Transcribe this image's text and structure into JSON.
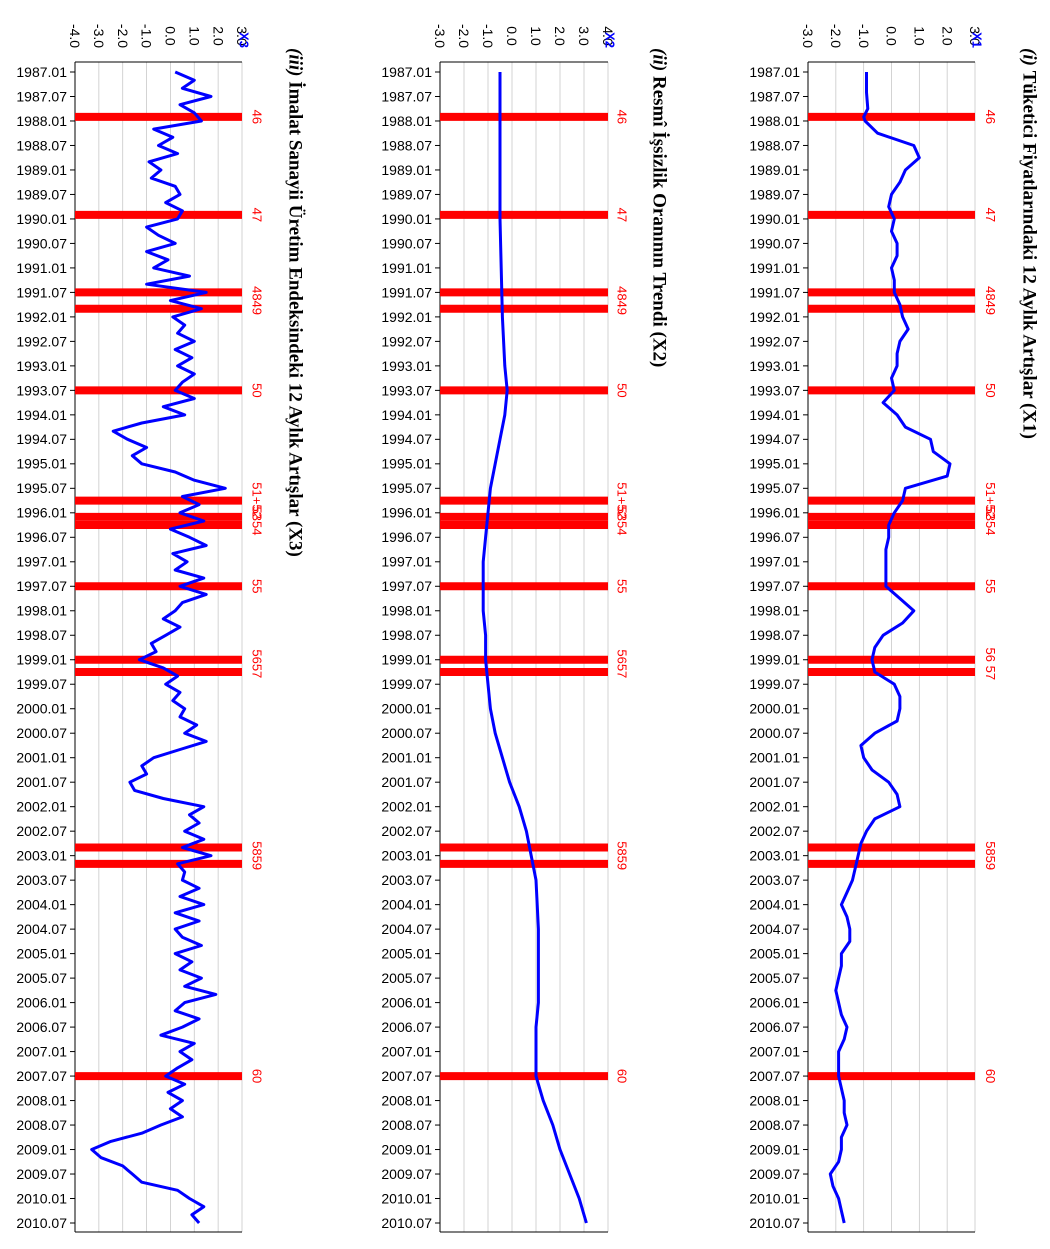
{
  "chart_data": [
    {
      "type": "line",
      "title_prefix": "(i)",
      "title": "Tüketici Fiyatlarındaki 12 Aylık Artışlar (X1)",
      "series_name": "X1",
      "ylim": [
        -3.0,
        3.0
      ],
      "yticks": [
        "3.0",
        "2.0",
        "1.0",
        "0.0",
        "-1.0",
        "-2.0",
        "-3.0"
      ],
      "color_line": "#0000ff",
      "color_event": "#ff0000",
      "events": [
        "46",
        "47",
        "48",
        "49",
        "50",
        "51+52",
        "53",
        "54",
        "55",
        "56",
        "57",
        "58",
        "59",
        "60"
      ],
      "event_labels": [
        "46",
        "47",
        "4849",
        "50",
        "51+52",
        "5354",
        "55",
        "56 57",
        "5859",
        "60"
      ],
      "points": [
        [
          1987.01,
          -0.9
        ],
        [
          1987.06,
          -0.9
        ],
        [
          1987.1,
          -0.85
        ],
        [
          1987.12,
          -1.0
        ],
        [
          1988.01,
          -0.95
        ],
        [
          1988.04,
          -0.5
        ],
        [
          1988.07,
          0.8
        ],
        [
          1988.1,
          1.0
        ],
        [
          1989.01,
          0.5
        ],
        [
          1989.04,
          0.3
        ],
        [
          1989.07,
          0.0
        ],
        [
          1989.1,
          -0.1
        ],
        [
          1990.01,
          0.1
        ],
        [
          1990.04,
          0.0
        ],
        [
          1990.07,
          0.2
        ],
        [
          1990.1,
          0.2
        ],
        [
          1991.01,
          0.0
        ],
        [
          1991.04,
          0.1
        ],
        [
          1991.07,
          0.1
        ],
        [
          1991.1,
          0.3
        ],
        [
          1992.01,
          0.4
        ],
        [
          1992.04,
          0.6
        ],
        [
          1992.07,
          0.3
        ],
        [
          1992.1,
          0.2
        ],
        [
          1993.01,
          0.2
        ],
        [
          1993.04,
          0.0
        ],
        [
          1993.07,
          0.1
        ],
        [
          1993.1,
          -0.3
        ],
        [
          1994.01,
          0.2
        ],
        [
          1994.04,
          0.5
        ],
        [
          1994.07,
          1.4
        ],
        [
          1994.1,
          1.5
        ],
        [
          1995.01,
          2.1
        ],
        [
          1995.04,
          2.0
        ],
        [
          1995.07,
          0.5
        ],
        [
          1995.1,
          0.4
        ],
        [
          1996.01,
          0.1
        ],
        [
          1996.04,
          -0.1
        ],
        [
          1996.07,
          -0.1
        ],
        [
          1996.1,
          -0.2
        ],
        [
          1997.01,
          -0.2
        ],
        [
          1997.04,
          -0.2
        ],
        [
          1997.07,
          -0.2
        ],
        [
          1997.1,
          0.3
        ],
        [
          1998.01,
          0.8
        ],
        [
          1998.04,
          0.4
        ],
        [
          1998.07,
          -0.3
        ],
        [
          1998.1,
          -0.6
        ],
        [
          1999.01,
          -0.7
        ],
        [
          1999.04,
          -0.6
        ],
        [
          1999.07,
          0.1
        ],
        [
          1999.1,
          0.3
        ],
        [
          2000.01,
          0.3
        ],
        [
          2000.04,
          0.2
        ],
        [
          2000.07,
          -0.6
        ],
        [
          2000.1,
          -1.1
        ],
        [
          2001.01,
          -1.0
        ],
        [
          2001.04,
          -0.7
        ],
        [
          2001.07,
          -0.1
        ],
        [
          2001.1,
          0.2
        ],
        [
          2002.01,
          0.3
        ],
        [
          2002.04,
          -0.6
        ],
        [
          2002.07,
          -0.9
        ],
        [
          2002.1,
          -1.1
        ],
        [
          2003.01,
          -1.2
        ],
        [
          2003.04,
          -1.3
        ],
        [
          2003.07,
          -1.4
        ],
        [
          2003.1,
          -1.6
        ],
        [
          2004.01,
          -1.8
        ],
        [
          2004.04,
          -1.6
        ],
        [
          2004.07,
          -1.5
        ],
        [
          2004.1,
          -1.5
        ],
        [
          2005.01,
          -1.8
        ],
        [
          2005.04,
          -1.8
        ],
        [
          2005.07,
          -1.9
        ],
        [
          2005.1,
          -2.0
        ],
        [
          2006.01,
          -1.9
        ],
        [
          2006.04,
          -1.8
        ],
        [
          2006.07,
          -1.6
        ],
        [
          2006.1,
          -1.7
        ],
        [
          2007.01,
          -1.9
        ],
        [
          2007.04,
          -1.9
        ],
        [
          2007.07,
          -1.9
        ],
        [
          2007.1,
          -1.8
        ],
        [
          2008.01,
          -1.7
        ],
        [
          2008.04,
          -1.7
        ],
        [
          2008.07,
          -1.6
        ],
        [
          2008.1,
          -1.8
        ],
        [
          2009.01,
          -1.8
        ],
        [
          2009.04,
          -1.9
        ],
        [
          2009.07,
          -2.2
        ],
        [
          2009.1,
          -2.1
        ],
        [
          2010.01,
          -1.9
        ],
        [
          2010.04,
          -1.8
        ],
        [
          2010.07,
          -1.7
        ]
      ]
    },
    {
      "type": "line",
      "title_prefix": "(ii)",
      "title": "Resmî İşsizlik Oranının Trendi (X2)",
      "series_name": "X2",
      "ylim": [
        -3.0,
        4.0
      ],
      "yticks": [
        "4.0",
        "3.0",
        "2.0",
        "1.0",
        "0.0",
        "-1.0",
        "-2.0",
        "-3.0"
      ],
      "color_line": "#0000ff",
      "color_event": "#ff0000",
      "events": [
        "46",
        "47",
        "48",
        "49",
        "50",
        "51+52",
        "53",
        "54",
        "55",
        "56",
        "57",
        "58",
        "59",
        "60"
      ],
      "event_labels": [
        "46",
        "47",
        "4849",
        "50",
        "51+52",
        "5354",
        "55",
        "5657",
        "5859",
        "60"
      ],
      "points": [
        [
          1987.01,
          -0.5
        ],
        [
          1988.01,
          -0.5
        ],
        [
          1989.01,
          -0.5
        ],
        [
          1990.01,
          -0.5
        ],
        [
          1991.01,
          -0.45
        ],
        [
          1992.01,
          -0.4
        ],
        [
          1993.01,
          -0.3
        ],
        [
          1993.07,
          -0.2
        ],
        [
          1994.01,
          -0.3
        ],
        [
          1994.07,
          -0.5
        ],
        [
          1995.01,
          -0.7
        ],
        [
          1995.07,
          -0.9
        ],
        [
          1996.01,
          -1.0
        ],
        [
          1996.07,
          -1.1
        ],
        [
          1997.01,
          -1.2
        ],
        [
          1997.07,
          -1.2
        ],
        [
          1998.01,
          -1.2
        ],
        [
          1998.07,
          -1.1
        ],
        [
          1999.01,
          -1.1
        ],
        [
          1999.07,
          -1.0
        ],
        [
          2000.01,
          -0.9
        ],
        [
          2000.07,
          -0.7
        ],
        [
          2001.01,
          -0.4
        ],
        [
          2001.07,
          -0.1
        ],
        [
          2002.01,
          0.3
        ],
        [
          2002.07,
          0.6
        ],
        [
          2003.01,
          0.8
        ],
        [
          2003.07,
          1.0
        ],
        [
          2004.01,
          1.05
        ],
        [
          2004.07,
          1.1
        ],
        [
          2005.01,
          1.1
        ],
        [
          2005.07,
          1.1
        ],
        [
          2006.01,
          1.1
        ],
        [
          2006.07,
          1.0
        ],
        [
          2007.01,
          1.0
        ],
        [
          2007.07,
          1.0
        ],
        [
          2008.01,
          1.3
        ],
        [
          2008.07,
          1.7
        ],
        [
          2009.01,
          2.0
        ],
        [
          2009.07,
          2.4
        ],
        [
          2010.01,
          2.8
        ],
        [
          2010.07,
          3.1
        ]
      ]
    },
    {
      "type": "line",
      "title_prefix": "(iii)",
      "title": "İmalat Sanayii Üretim Endeksindeki 12 Aylık Artışlar (X3)",
      "series_name": "X3",
      "ylim": [
        -4.0,
        3.0
      ],
      "yticks": [
        "3.0",
        "2.0",
        "1.0",
        "0.0",
        "-1.0",
        "-2.0",
        "-3.0",
        "-4.0"
      ],
      "color_line": "#0000ff",
      "color_event": "#ff0000",
      "events": [
        "46",
        "47",
        "48",
        "49",
        "50",
        "51+52",
        "53",
        "54",
        "55",
        "56",
        "57",
        "58",
        "59",
        "60"
      ],
      "event_labels": [
        "46",
        "47",
        "4849",
        "50",
        "51+52",
        "5354",
        "55",
        "5657",
        "5859",
        "60"
      ],
      "points": [
        [
          1987.01,
          0.2
        ],
        [
          1987.03,
          1.0
        ],
        [
          1987.05,
          0.5
        ],
        [
          1987.07,
          1.7
        ],
        [
          1987.09,
          0.4
        ],
        [
          1987.11,
          1.0
        ],
        [
          1988.01,
          1.3
        ],
        [
          1988.03,
          -0.7
        ],
        [
          1988.05,
          0.1
        ],
        [
          1988.07,
          -0.5
        ],
        [
          1988.09,
          0.3
        ],
        [
          1988.11,
          -0.9
        ],
        [
          1989.01,
          -0.4
        ],
        [
          1989.03,
          -0.8
        ],
        [
          1989.05,
          0.2
        ],
        [
          1989.07,
          0.4
        ],
        [
          1989.09,
          -0.2
        ],
        [
          1989.11,
          0.5
        ],
        [
          1990.01,
          0.3
        ],
        [
          1990.03,
          -1.0
        ],
        [
          1990.05,
          -0.5
        ],
        [
          1990.07,
          0.2
        ],
        [
          1990.09,
          -1.0
        ],
        [
          1990.11,
          -0.1
        ],
        [
          1991.01,
          -0.7
        ],
        [
          1991.03,
          0.8
        ],
        [
          1991.05,
          -1.0
        ],
        [
          1991.07,
          1.5
        ],
        [
          1991.09,
          0.0
        ],
        [
          1991.11,
          1.3
        ],
        [
          1992.01,
          0.1
        ],
        [
          1992.03,
          0.6
        ],
        [
          1992.05,
          0.3
        ],
        [
          1992.07,
          1.0
        ],
        [
          1992.09,
          0.2
        ],
        [
          1992.11,
          0.9
        ],
        [
          1993.01,
          0.3
        ],
        [
          1993.03,
          1.0
        ],
        [
          1993.05,
          0.5
        ],
        [
          1993.07,
          0.2
        ],
        [
          1993.09,
          1.0
        ],
        [
          1993.11,
          -0.3
        ],
        [
          1994.01,
          0.6
        ],
        [
          1994.03,
          -1.2
        ],
        [
          1994.05,
          -2.4
        ],
        [
          1994.07,
          -1.8
        ],
        [
          1994.09,
          -1.0
        ],
        [
          1994.11,
          -1.6
        ],
        [
          1995.01,
          -1.2
        ],
        [
          1995.03,
          0.2
        ],
        [
          1995.05,
          1.0
        ],
        [
          1995.07,
          2.3
        ],
        [
          1995.09,
          0.5
        ],
        [
          1995.11,
          1.2
        ],
        [
          1996.01,
          0.4
        ],
        [
          1996.03,
          1.4
        ],
        [
          1996.05,
          0.0
        ],
        [
          1996.07,
          0.8
        ],
        [
          1996.09,
          1.5
        ],
        [
          1996.11,
          0.1
        ],
        [
          1997.01,
          0.7
        ],
        [
          1997.03,
          0.2
        ],
        [
          1997.05,
          1.4
        ],
        [
          1997.07,
          0.4
        ],
        [
          1997.09,
          1.5
        ],
        [
          1997.11,
          0.5
        ],
        [
          1998.01,
          0.2
        ],
        [
          1998.03,
          -0.3
        ],
        [
          1998.05,
          0.4
        ],
        [
          1998.07,
          -0.2
        ],
        [
          1998.09,
          -0.8
        ],
        [
          1998.11,
          -0.6
        ],
        [
          1999.01,
          -1.3
        ],
        [
          1999.03,
          -0.3
        ],
        [
          1999.05,
          0.3
        ],
        [
          1999.07,
          -0.2
        ],
        [
          1999.09,
          0.4
        ],
        [
          1999.11,
          0.1
        ],
        [
          2000.01,
          0.6
        ],
        [
          2000.03,
          0.4
        ],
        [
          2000.05,
          1.1
        ],
        [
          2000.07,
          0.6
        ],
        [
          2000.09,
          1.5
        ],
        [
          2000.11,
          0.4
        ],
        [
          2001.01,
          -0.7
        ],
        [
          2001.03,
          -1.2
        ],
        [
          2001.05,
          -1.0
        ],
        [
          2001.07,
          -1.7
        ],
        [
          2001.09,
          -1.5
        ],
        [
          2001.11,
          -0.3
        ],
        [
          2002.01,
          1.4
        ],
        [
          2002.03,
          0.8
        ],
        [
          2002.05,
          1.2
        ],
        [
          2002.07,
          0.6
        ],
        [
          2002.09,
          1.4
        ],
        [
          2002.11,
          0.5
        ],
        [
          2003.01,
          1.7
        ],
        [
          2003.03,
          0.3
        ],
        [
          2003.05,
          0.6
        ],
        [
          2003.07,
          0.5
        ],
        [
          2003.09,
          1.2
        ],
        [
          2003.11,
          0.4
        ],
        [
          2004.01,
          1.4
        ],
        [
          2004.03,
          0.2
        ],
        [
          2004.05,
          1.2
        ],
        [
          2004.07,
          0.2
        ],
        [
          2004.09,
          0.5
        ],
        [
          2004.11,
          1.3
        ],
        [
          2005.01,
          0.2
        ],
        [
          2005.03,
          0.9
        ],
        [
          2005.05,
          0.4
        ],
        [
          2005.07,
          1.3
        ],
        [
          2005.09,
          0.6
        ],
        [
          2005.11,
          1.9
        ],
        [
          2006.01,
          0.6
        ],
        [
          2006.03,
          0.2
        ],
        [
          2006.05,
          1.2
        ],
        [
          2006.07,
          0.5
        ],
        [
          2006.09,
          -0.4
        ],
        [
          2006.11,
          1.0
        ],
        [
          2007.01,
          0.4
        ],
        [
          2007.03,
          0.9
        ],
        [
          2007.05,
          0.3
        ],
        [
          2007.07,
          -0.2
        ],
        [
          2007.09,
          0.6
        ],
        [
          2007.11,
          -0.1
        ],
        [
          2008.01,
          0.5
        ],
        [
          2008.03,
          0.0
        ],
        [
          2008.05,
          0.5
        ],
        [
          2008.07,
          -0.4
        ],
        [
          2008.09,
          -1.2
        ],
        [
          2008.11,
          -2.5
        ],
        [
          2009.01,
          -3.3
        ],
        [
          2009.03,
          -2.9
        ],
        [
          2009.05,
          -2.0
        ],
        [
          2009.07,
          -1.6
        ],
        [
          2009.09,
          -1.2
        ],
        [
          2009.11,
          0.3
        ],
        [
          2010.01,
          0.8
        ],
        [
          2010.03,
          1.4
        ],
        [
          2010.05,
          0.9
        ],
        [
          2010.07,
          1.2
        ]
      ]
    }
  ],
  "x_ticks": [
    "1987.01",
    "1987.07",
    "1988.01",
    "1988.07",
    "1989.01",
    "1989.07",
    "1990.01",
    "1990.07",
    "1991.01",
    "1991.07",
    "1992.01",
    "1992.07",
    "1993.01",
    "1993.07",
    "1994.01",
    "1994.07",
    "1995.01",
    "1995.07",
    "1996.01",
    "1996.07",
    "1997.01",
    "1997.07",
    "1998.01",
    "1998.07",
    "1999.01",
    "1999.07",
    "2000.01",
    "2000.07",
    "2001.01",
    "2001.07",
    "2002.01",
    "2002.07",
    "2003.01",
    "2003.07",
    "2004.01",
    "2004.07",
    "2005.01",
    "2005.07",
    "2006.01",
    "2006.07",
    "2007.01",
    "2007.07",
    "2008.01",
    "2008.07",
    "2009.01",
    "2009.07",
    "2010.01",
    "2010.07"
  ],
  "event_dates": [
    1987.12,
    1989.12,
    1991.07,
    1991.11,
    1993.07,
    1995.1,
    1996.02,
    1996.04,
    1997.07,
    1999.01,
    1999.04,
    2002.11,
    2003.03,
    2007.07
  ],
  "event_label_dates": [
    1987.12,
    1989.12,
    1991.09,
    1993.07,
    1995.1,
    1996.03,
    1997.07,
    1999.02,
    2003.01,
    2007.07
  ]
}
